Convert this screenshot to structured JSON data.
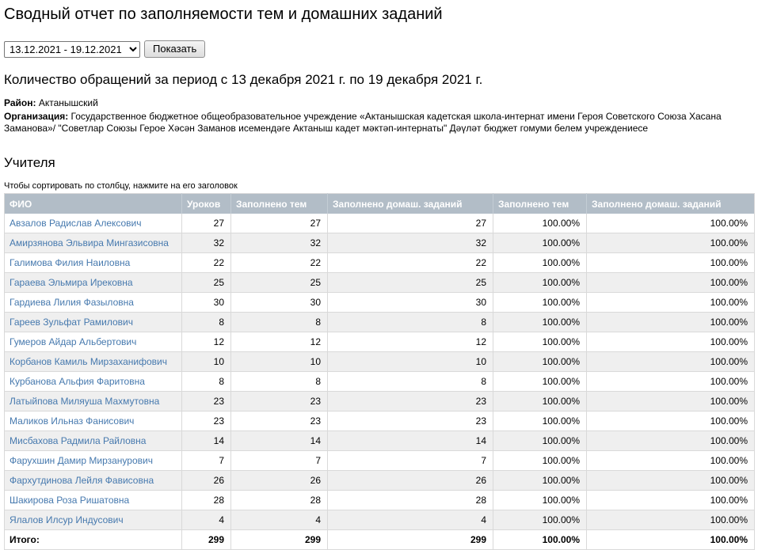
{
  "page": {
    "title": "Сводный отчет по заполняемости тем и домашних заданий",
    "subtitle": "Количество обращений за период с 13 декабря 2021 г. по 19 декабря 2021 г.",
    "section_title": "Учителя",
    "sort_hint": "Чтобы сортировать по столбцу, нажмите на его заголовок"
  },
  "controls": {
    "period_selected": "13.12.2021 - 19.12.2021",
    "show_button_label": "Показать"
  },
  "meta": {
    "district_label": "Район:",
    "district_value": "Актанышский",
    "organization_label": "Организация:",
    "organization_value": "Государственное бюджетное общеобразовательное учреждение «Актанышская кадетская школа-интернат имени Героя Советского Союза Хасана Заманова»/ \"Советлар Союзы Герое Хәсән Заманов исемендәге Актаныш кадет мәктәп-интернаты\" Дәүләт бюджет гомуми белем учреждениесе"
  },
  "table": {
    "headers": [
      "ФИО",
      "Уроков",
      "Заполнено тем",
      "Заполнено домаш. заданий",
      "Заполнено тем",
      "Заполнено домаш. заданий"
    ],
    "rows": [
      {
        "name": "Авзалов Радислав Алексович",
        "values": [
          "27",
          "27",
          "27",
          "100.00%",
          "100.00%"
        ]
      },
      {
        "name": "Амирзянова Эльвира Мингазисовна",
        "values": [
          "32",
          "32",
          "32",
          "100.00%",
          "100.00%"
        ]
      },
      {
        "name": "Галимова Филия Наиловна",
        "values": [
          "22",
          "22",
          "22",
          "100.00%",
          "100.00%"
        ]
      },
      {
        "name": "Гараева Эльмира Ирековна",
        "values": [
          "25",
          "25",
          "25",
          "100.00%",
          "100.00%"
        ]
      },
      {
        "name": "Гардиева Лилия Фазыловна",
        "values": [
          "30",
          "30",
          "30",
          "100.00%",
          "100.00%"
        ]
      },
      {
        "name": "Гареев Зульфат Рамилович",
        "values": [
          "8",
          "8",
          "8",
          "100.00%",
          "100.00%"
        ]
      },
      {
        "name": "Гумеров Айдар Альбертович",
        "values": [
          "12",
          "12",
          "12",
          "100.00%",
          "100.00%"
        ]
      },
      {
        "name": "Корбанов Камиль Мирзаханифович",
        "values": [
          "10",
          "10",
          "10",
          "100.00%",
          "100.00%"
        ]
      },
      {
        "name": "Курбанова Альфия Фаритовна",
        "values": [
          "8",
          "8",
          "8",
          "100.00%",
          "100.00%"
        ]
      },
      {
        "name": "Латыйпова Миляуша Махмутовна",
        "values": [
          "23",
          "23",
          "23",
          "100.00%",
          "100.00%"
        ]
      },
      {
        "name": "Маликов Ильназ Фанисович",
        "values": [
          "23",
          "23",
          "23",
          "100.00%",
          "100.00%"
        ]
      },
      {
        "name": "Мисбахова Радмила Райловна",
        "values": [
          "14",
          "14",
          "14",
          "100.00%",
          "100.00%"
        ]
      },
      {
        "name": "Фарухшин Дамир Мирзанурович",
        "values": [
          "7",
          "7",
          "7",
          "100.00%",
          "100.00%"
        ]
      },
      {
        "name": "Фархутдинова Лейля Фависовна",
        "values": [
          "26",
          "26",
          "26",
          "100.00%",
          "100.00%"
        ]
      },
      {
        "name": "Шакирова Роза Ришатовна",
        "values": [
          "28",
          "28",
          "28",
          "100.00%",
          "100.00%"
        ]
      },
      {
        "name": "Ялалов Илсур Индусович",
        "values": [
          "4",
          "4",
          "4",
          "100.00%",
          "100.00%"
        ]
      }
    ],
    "totals": {
      "label": "Итого:",
      "values": [
        "299",
        "299",
        "299",
        "100.00%",
        "100.00%"
      ]
    }
  },
  "colors": {
    "table_header_bg": "#b2bdc7",
    "table_header_text": "#ffffff",
    "zebra_row_bg": "#efefef",
    "link": "#4679ae",
    "border": "#d9d9d9"
  }
}
